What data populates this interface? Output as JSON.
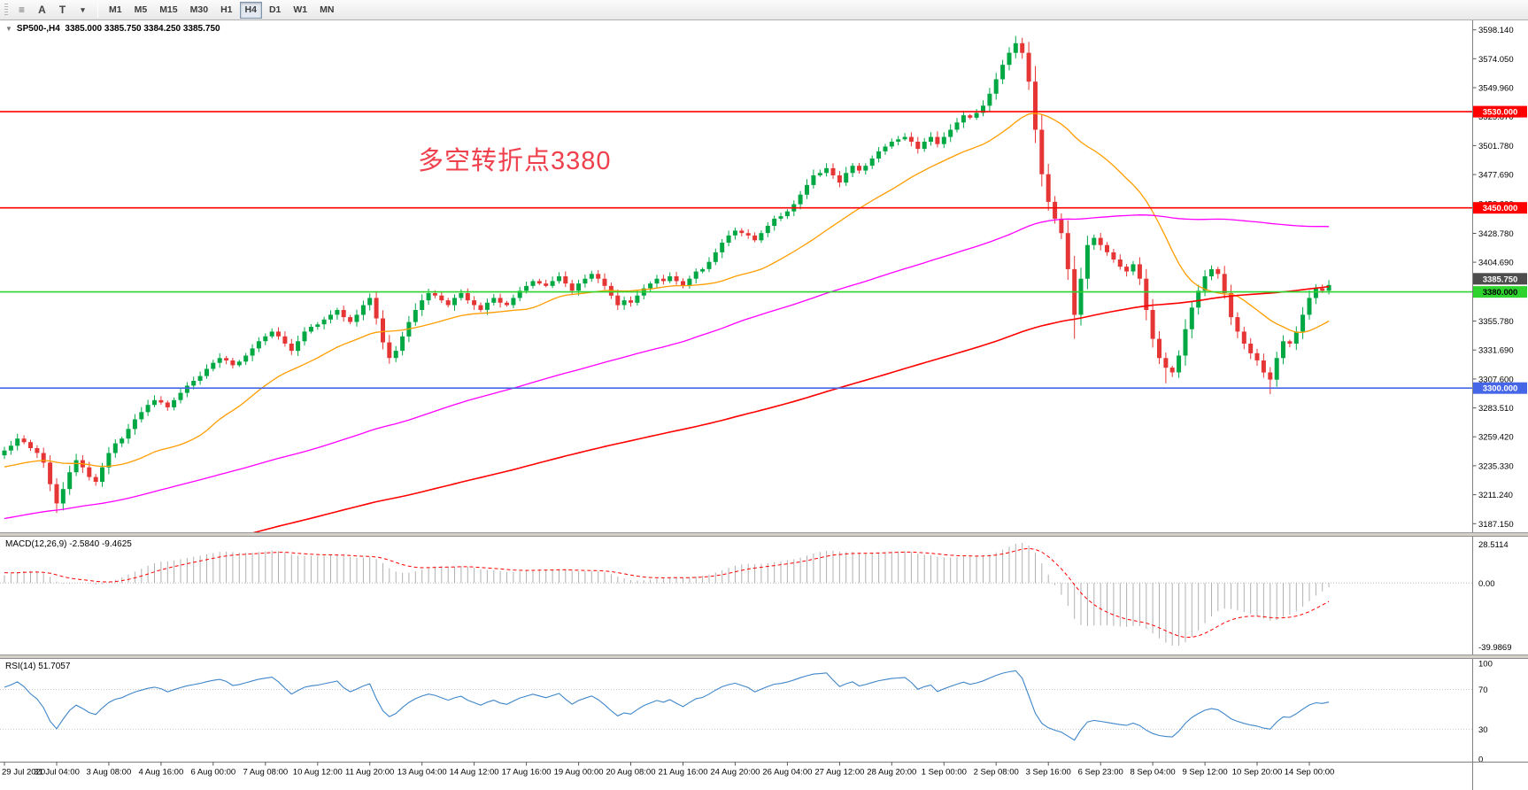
{
  "toolbar": {
    "icons": [
      {
        "name": "charts-list-icon",
        "glyph": "≡"
      },
      {
        "name": "annotate-letter-a-button",
        "glyph": "A"
      },
      {
        "name": "text-tool-icon",
        "glyph": "T"
      },
      {
        "name": "dropdown-caret-icon",
        "glyph": "▾"
      }
    ],
    "timeframes": [
      "M1",
      "M5",
      "M15",
      "M30",
      "H1",
      "H4",
      "D1",
      "W1",
      "MN"
    ],
    "active_timeframe": "H4"
  },
  "chart": {
    "collapse_icon": "▼",
    "header": "SP500-,H4  3385.000 3385.750 3384.250 3385.750",
    "annotation": {
      "text": "多空转折点3380",
      "color": "#ef404d"
    },
    "levels": [
      {
        "price": 3530.0,
        "label": "3530.000",
        "color": "#ff0000",
        "text_color": "#ffffff"
      },
      {
        "price": 3450.0,
        "label": "3450.000",
        "color": "#ff0000",
        "text_color": "#ffffff"
      },
      {
        "price": 3380.0,
        "label": "3380.000",
        "color": "#2ed32e",
        "text_color": "#000000"
      },
      {
        "price": 3300.0,
        "label": "3300.000",
        "color": "#4666e8",
        "text_color": "#ffffff"
      }
    ],
    "current_price": {
      "value": 3385.75,
      "label": "3385.750",
      "bg": "#4d4d4d",
      "text_color": "#ffffff"
    }
  },
  "macd": {
    "header": "MACD(12,26,9) -2.5840 -9.4625",
    "axis_labels": [
      "28.5114",
      "0.00",
      "-39.9869"
    ]
  },
  "rsi": {
    "header": "RSI(14) 51.7057",
    "axis": [
      {
        "value": 100,
        "label": "100"
      },
      {
        "value": 70,
        "label": "70"
      },
      {
        "value": 30,
        "label": "30"
      },
      {
        "value": 0,
        "label": "0"
      }
    ],
    "levels": [
      70,
      30
    ]
  },
  "chart_data": {
    "type": "candlestick",
    "symbol": "SP500-",
    "timeframe": "H4",
    "ohlc_current": {
      "open": 3385.0,
      "high": 3385.75,
      "low": 3384.25,
      "close": 3385.75
    },
    "view": {
      "price_max": 3606,
      "price_min": 3180
    },
    "first_open": 3244,
    "closes": [
      3248,
      3252,
      3258,
      3255,
      3250,
      3246,
      3238,
      3220,
      3204,
      3216,
      3230,
      3240,
      3234,
      3226,
      3222,
      3234,
      3246,
      3254,
      3258,
      3266,
      3274,
      3280,
      3286,
      3290,
      3288,
      3284,
      3290,
      3296,
      3302,
      3306,
      3310,
      3316,
      3321,
      3325,
      3323,
      3319,
      3322,
      3327,
      3333,
      3339,
      3343,
      3347,
      3343,
      3337,
      3331,
      3339,
      3347,
      3351,
      3353,
      3357,
      3361,
      3365,
      3359,
      3355,
      3361,
      3369,
      3375,
      3358,
      3338,
      3325,
      3331,
      3343,
      3355,
      3365,
      3373,
      3379,
      3377,
      3373,
      3369,
      3375,
      3379,
      3373,
      3369,
      3365,
      3371,
      3375,
      3371,
      3369,
      3375,
      3381,
      3385,
      3389,
      3387,
      3385,
      3389,
      3393,
      3387,
      3381,
      3387,
      3391,
      3395,
      3391,
      3385,
      3377,
      3369,
      3373,
      3371,
      3377,
      3383,
      3387,
      3391,
      3389,
      3393,
      3389,
      3385,
      3391,
      3397,
      3399,
      3405,
      3413,
      3421,
      3427,
      3431,
      3429,
      3427,
      3423,
      3429,
      3435,
      3441,
      3443,
      3447,
      3453,
      3461,
      3469,
      3477,
      3479,
      3483,
      3477,
      3471,
      3479,
      3485,
      3481,
      3485,
      3491,
      3497,
      3501,
      3505,
      3507,
      3509,
      3505,
      3499,
      3505,
      3509,
      3503,
      3509,
      3515,
      3521,
      3527,
      3525,
      3529,
      3535,
      3545,
      3557,
      3569,
      3579,
      3587,
      3579,
      3555,
      3515,
      3478,
      3455,
      3441,
      3429,
      3399,
      3361,
      3391,
      3419,
      3425,
      3419,
      3413,
      3407,
      3401,
      3397,
      3403,
      3391,
      3365,
      3341,
      3325,
      3317,
      3313,
      3327,
      3349,
      3367,
      3381,
      3393,
      3399,
      3395,
      3379,
      3359,
      3347,
      3337,
      3329,
      3323,
      3313,
      3307,
      3325,
      3339,
      3337,
      3347,
      3361,
      3375,
      3383,
      3381,
      3385.75
    ],
    "wick_lows": {
      "8": 3196,
      "164": 3341,
      "178": 3304,
      "194": 3295
    },
    "wick_highs": {
      "155": 3593
    },
    "time_labels": [
      "29 Jul 2020",
      "31 Jul 04:00",
      "3 Aug 08:00",
      "4 Aug 16:00",
      "6 Aug 00:00",
      "7 Aug 08:00",
      "10 Aug 12:00",
      "11 Aug 20:00",
      "13 Aug 04:00",
      "14 Aug 12:00",
      "17 Aug 16:00",
      "19 Aug 00:00",
      "20 Aug 08:00",
      "21 Aug 16:00",
      "24 Aug 20:00",
      "26 Aug 04:00",
      "27 Aug 12:00",
      "28 Aug 20:00",
      "1 Sep 00:00",
      "2 Sep 08:00",
      "3 Sep 16:00",
      "6 Sep 23:00",
      "8 Sep 04:00",
      "9 Sep 12:00",
      "10 Sep 20:00",
      "14 Sep 00:00"
    ],
    "y_axis_ticks": [
      {
        "price": 3598.14,
        "label": "3598.140"
      },
      {
        "price": 3574.05,
        "label": "3574.050"
      },
      {
        "price": 3549.96,
        "label": "3549.960"
      },
      {
        "price": 3525.87,
        "label": "3525.870"
      },
      {
        "price": 3501.78,
        "label": "3501.780"
      },
      {
        "price": 3477.69,
        "label": "3477.690"
      },
      {
        "price": 3453.6,
        "label": "3453.600"
      },
      {
        "price": 3428.78,
        "label": "3428.780"
      },
      {
        "price": 3404.69,
        "label": "3404.690"
      },
      {
        "price": 3380.6,
        "label": "3380.600"
      },
      {
        "price": 3355.78,
        "label": "3355.780"
      },
      {
        "price": 3331.69,
        "label": "3331.690"
      },
      {
        "price": 3307.6,
        "label": "3307.600"
      },
      {
        "price": 3283.51,
        "label": "3283.510"
      },
      {
        "price": 3259.42,
        "label": "3259.420"
      },
      {
        "price": 3235.33,
        "label": "3235.330"
      },
      {
        "price": 3211.24,
        "label": "3211.240"
      },
      {
        "price": 3187.15,
        "label": "3187.150"
      }
    ],
    "moving_averages": [
      {
        "name": "fast",
        "period": 24,
        "color": "#ff9d00"
      },
      {
        "name": "mid",
        "period": 98,
        "color": "#ff00ff"
      },
      {
        "name": "slow",
        "period": 200,
        "color": "#ff0000"
      }
    ],
    "colors": {
      "bull": "#00a843",
      "bear": "#e63535",
      "macd_hist": "#b0b0b0",
      "macd_signal": "#ff0000",
      "rsi": "#3f86c9"
    },
    "indicators": [
      {
        "type": "MACD",
        "fast": 12,
        "slow": 26,
        "signal": 9,
        "values_label": "-2.5840 -9.4625"
      },
      {
        "type": "RSI",
        "period": 14,
        "value": 51.7057
      }
    ]
  }
}
